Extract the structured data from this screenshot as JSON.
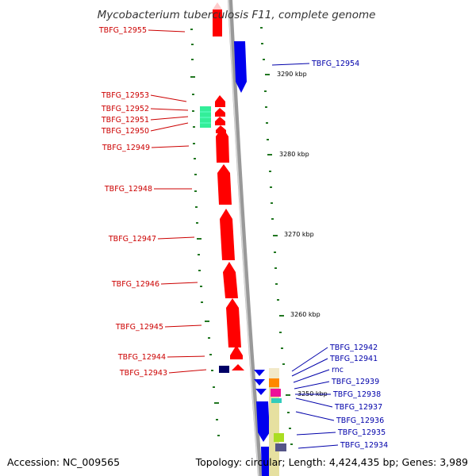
{
  "title": "Mycobacterium tuberculosis F11, complete genome",
  "accession": "Accession: NC_009565",
  "topology": "Topology: circular; Length: 4,424,435 bp; Genes: 3,989",
  "colors": {
    "forward": "#ff0000",
    "reverse": "#0000ff",
    "backbone": "#999999",
    "dots": "#227722"
  },
  "scale_labels": [
    "3290 kbp",
    "3280 kbp",
    "3270 kbp",
    "3260 kbp",
    "3250 kbp"
  ],
  "genes_forward": [
    "TBFG_12955",
    "TBFG_12953",
    "TBFG_12952",
    "TBFG_12951",
    "TBFG_12950",
    "TBFG_12949",
    "TBFG_12948",
    "TBFG_12947",
    "TBFG_12946",
    "TBFG_12945",
    "TBFG_12944",
    "TBFG_12943"
  ],
  "genes_reverse": [
    "TBFG_12954",
    "TBFG_12942",
    "TBFG_12941",
    "rnc",
    "TBFG_12939",
    "TBFG_12938",
    "TBFG_12937",
    "TBFG_12936",
    "TBFG_12935",
    "TBFG_12934"
  ]
}
